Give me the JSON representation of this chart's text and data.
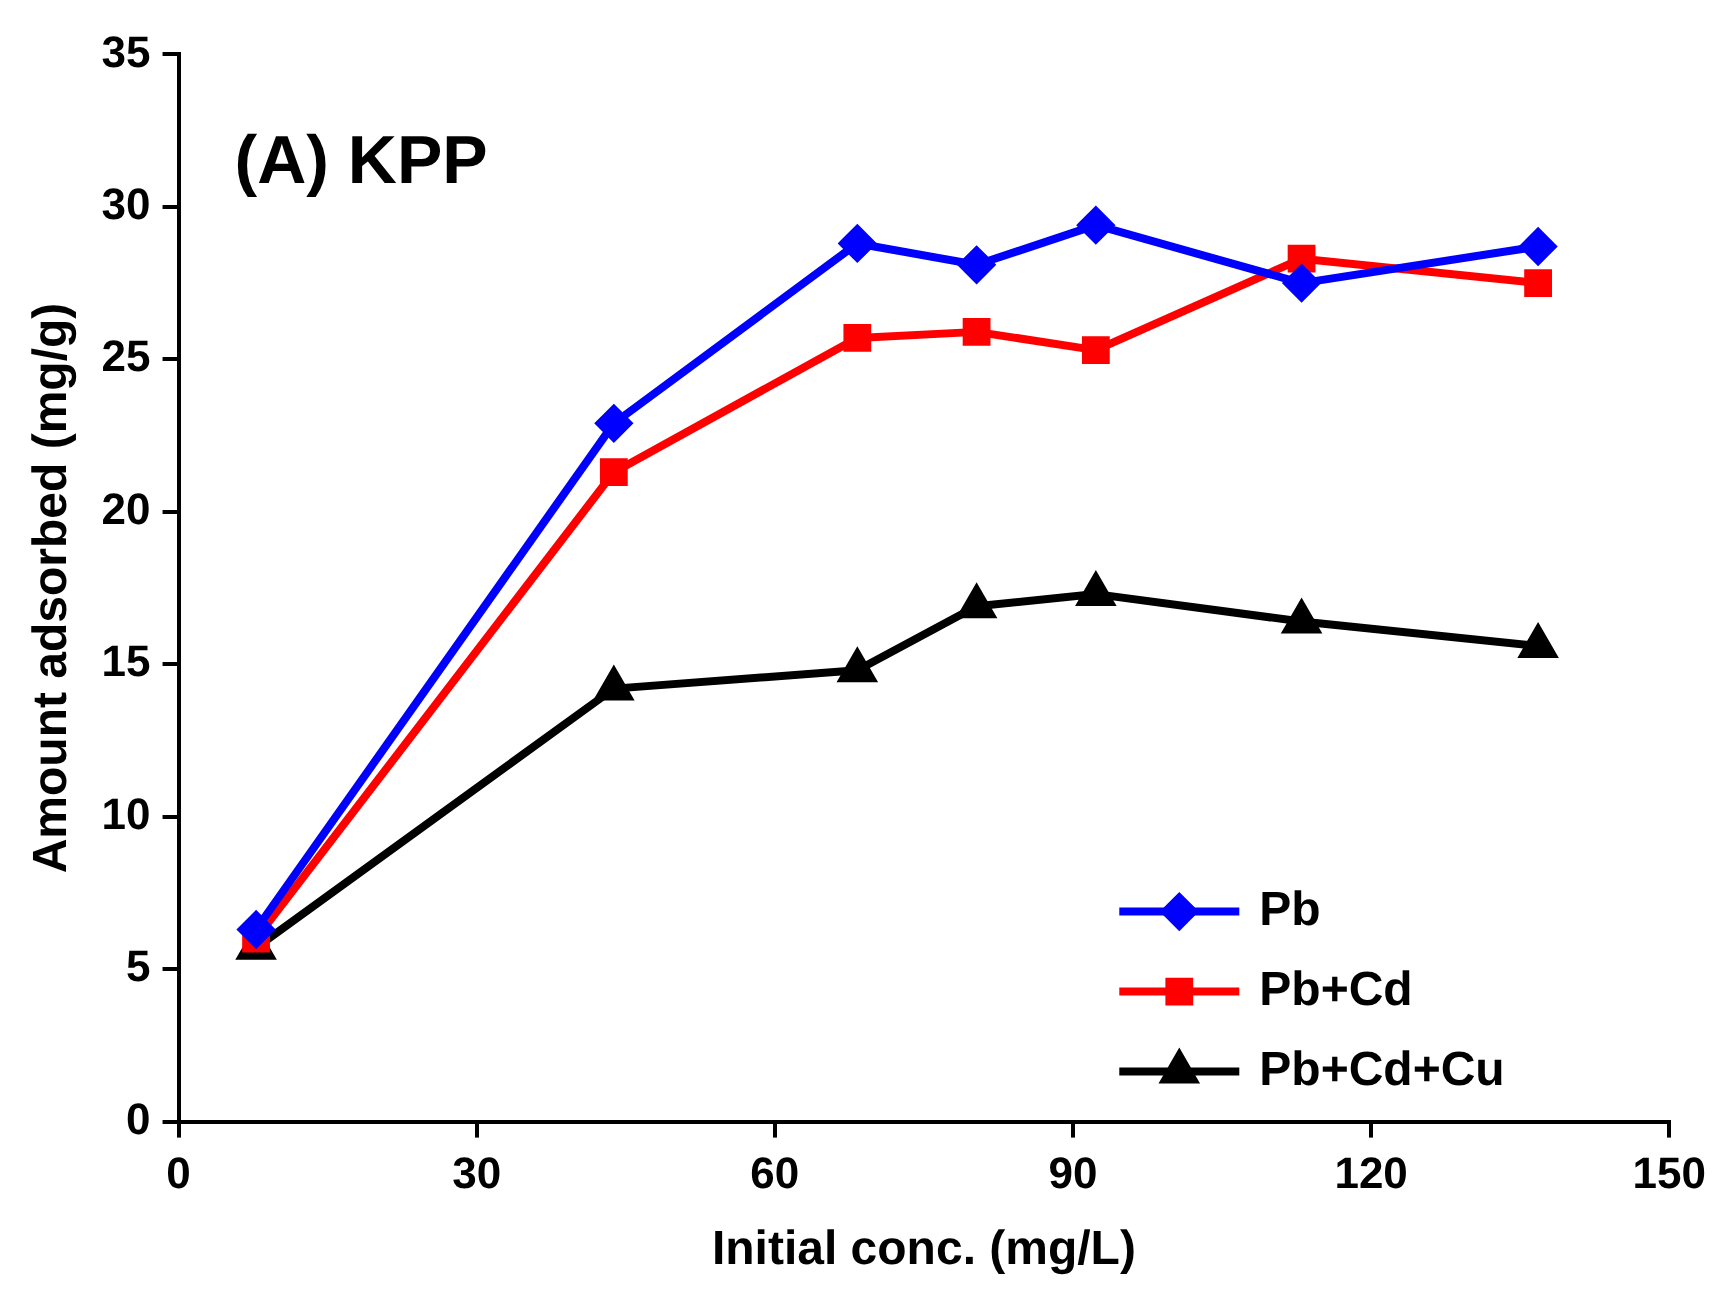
{
  "chart_data": {
    "type": "line",
    "annotations": [
      "(A) KPP"
    ],
    "xlabel": "Initial conc. (mg/L)",
    "ylabel": "Amount adsorbed (mg/g)",
    "x": [
      7.8,
      43.8,
      68.3,
      80.3,
      92.3,
      113,
      136.8
    ],
    "series": [
      {
        "name": "Pb",
        "color": "#0000ff",
        "marker": "diamond",
        "values": [
          6.3,
          22.9,
          28.8,
          28.1,
          29.4,
          27.5,
          28.7
        ]
      },
      {
        "name": "Pb+Cd",
        "color": "#ff0000",
        "marker": "square",
        "values": [
          6.0,
          21.3,
          25.7,
          25.9,
          25.3,
          28.3,
          27.5
        ]
      },
      {
        "name": "Pb+Cd+Cu",
        "color": "#000000",
        "marker": "triangle",
        "values": [
          5.7,
          14.2,
          14.8,
          16.9,
          17.3,
          16.4,
          15.6
        ]
      }
    ],
    "xlim": [
      0,
      150
    ],
    "xticks": [
      0,
      30,
      60,
      90,
      120,
      150
    ],
    "ylim": [
      0,
      35
    ],
    "yticks": [
      0,
      5,
      10,
      15,
      20,
      25,
      30,
      35
    ],
    "grid": false,
    "legend": "bottom right",
    "line_style": "solid"
  }
}
